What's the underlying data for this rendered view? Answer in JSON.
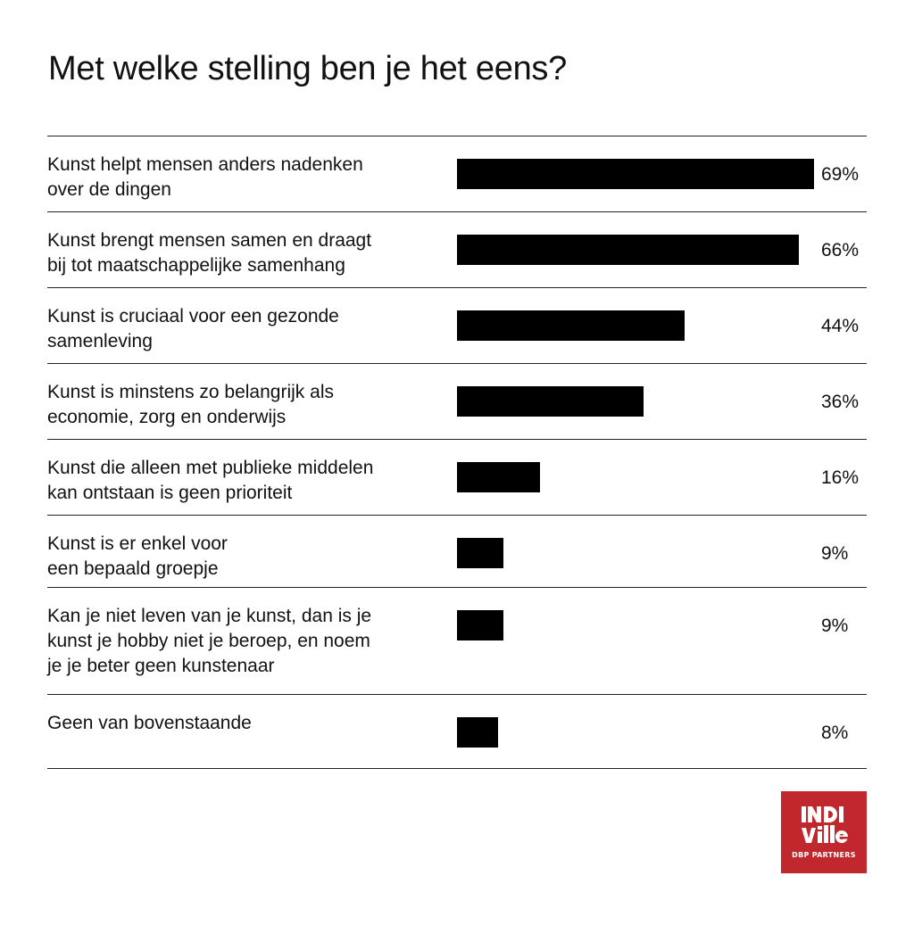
{
  "title": "Met welke stelling ben je het eens?",
  "chart_data": {
    "type": "bar",
    "orientation": "horizontal",
    "title": "Met welke stelling ben je het eens?",
    "categories": [
      "Kunst helpt mensen anders nadenken over de dingen",
      "Kunst brengt mensen samen en draagt bij tot maatschappelijke samenhang",
      "Kunst is cruciaal voor een gezonde samenleving",
      "Kunst is minstens zo belangrijk als economie, zorg en onderwijs",
      "Kunst die alleen met publieke middelen kan ontstaan is geen prioriteit",
      "Kunst is er enkel voor een bepaald groepje",
      "Kan je niet leven van je kunst, dan is je kunst je hobby niet je beroep, en noem je je beter geen kunstenaar",
      "Geen van bovenstaande"
    ],
    "label_lines": [
      [
        "Kunst helpt mensen anders nadenken",
        "over de dingen"
      ],
      [
        "Kunst brengt mensen samen en draagt",
        "bij tot maatschappelijke samenhang"
      ],
      [
        "Kunst is cruciaal voor een gezonde",
        "samenleving"
      ],
      [
        "Kunst is minstens zo belangrijk als",
        "economie, zorg en onderwijs"
      ],
      [
        "Kunst die alleen met publieke middelen",
        "kan ontstaan is geen prioriteit"
      ],
      [
        "Kunst is er enkel voor",
        "een bepaald groepje"
      ],
      [
        "Kan je niet leven van je kunst, dan is je",
        "kunst je hobby niet je beroep, en noem",
        "je je beter geen kunstenaar"
      ],
      [
        "Geen van bovenstaande"
      ]
    ],
    "values": [
      69,
      66,
      44,
      36,
      16,
      9,
      9,
      8
    ],
    "value_labels": [
      "69%",
      "66%",
      "44%",
      "36%",
      "16%",
      "9%",
      "9%",
      "8%"
    ],
    "unit": "%",
    "xlim": [
      0,
      69
    ],
    "bar_color": "#000000",
    "grid": false,
    "legend": "none"
  },
  "logo": {
    "text": "INDIVILLE",
    "line1": "INDI",
    "line2": "ville",
    "subtitle": "DBP PARTNERS",
    "color": "#c0282d"
  }
}
